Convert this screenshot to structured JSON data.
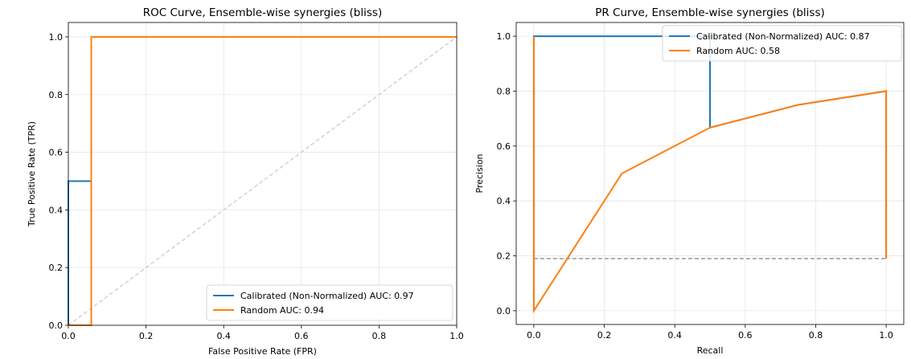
{
  "chart_data": [
    {
      "type": "line",
      "title": "ROC Curve, Ensemble-wise synergies (bliss)",
      "xlabel": "False Positive Rate (FPR)",
      "ylabel": "True Positive Rate (TPR)",
      "xlim": [
        0,
        1
      ],
      "ylim": [
        0,
        1.05
      ],
      "xticks": [
        "0.0",
        "0.2",
        "0.4",
        "0.6",
        "0.8",
        "1.0"
      ],
      "yticks": [
        "0.0",
        "0.2",
        "0.4",
        "0.6",
        "0.8",
        "1.0"
      ],
      "grid": true,
      "legend_position": "lower-right",
      "reference_line": {
        "x": [
          0,
          1
        ],
        "y": [
          0,
          1
        ],
        "style": "dashed",
        "color": "#cccccc"
      },
      "series": [
        {
          "name": "Calibrated (Non-Normalized) AUC: 0.97",
          "color": "#1f77b4",
          "x": [
            0,
            0,
            0.059,
            0.059,
            1
          ],
          "y": [
            0,
            0.5,
            0.5,
            1,
            1
          ]
        },
        {
          "name": "Random AUC: 0.94",
          "color": "#ff7f0e",
          "x": [
            0,
            0.059,
            0.059,
            1
          ],
          "y": [
            0,
            0,
            1,
            1
          ]
        }
      ]
    },
    {
      "type": "line",
      "title": "PR Curve, Ensemble-wise synergies (bliss)",
      "xlabel": "Recall",
      "ylabel": "Precision",
      "xlim": [
        -0.05,
        1.05
      ],
      "ylim": [
        -0.05,
        1.05
      ],
      "xticks": [
        "0.0",
        "0.2",
        "0.4",
        "0.6",
        "0.8",
        "1.0"
      ],
      "yticks": [
        "0.0",
        "0.2",
        "0.4",
        "0.6",
        "0.8",
        "1.0"
      ],
      "grid": true,
      "legend_position": "top-right",
      "reference_line": {
        "x": [
          0,
          1
        ],
        "y": [
          0.19,
          0.19
        ],
        "style": "dashed",
        "color": "#808080"
      },
      "series": [
        {
          "name": "Calibrated (Non-Normalized) AUC: 0.87",
          "color": "#1f77b4",
          "x": [
            0,
            0,
            0.5,
            0.5,
            0.75,
            1,
            1
          ],
          "y": [
            0,
            1,
            1,
            0.667,
            0.75,
            0.8,
            0.19
          ]
        },
        {
          "name": "Random AUC: 0.58",
          "color": "#ff7f0e",
          "x": [
            0,
            0,
            0,
            0.25,
            0.5,
            0.75,
            1,
            1
          ],
          "y": [
            0,
            1,
            0,
            0.5,
            0.667,
            0.75,
            0.8,
            0.19
          ]
        }
      ]
    }
  ]
}
